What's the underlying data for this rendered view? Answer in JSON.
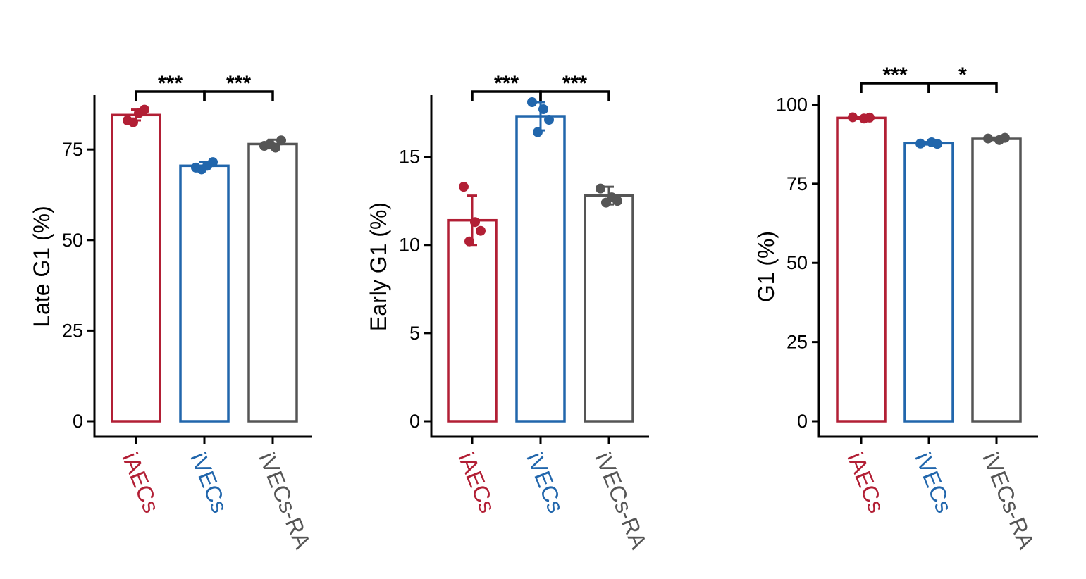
{
  "colors": {
    "iAECs": "#b21f35",
    "iVECs": "#2166ac",
    "iVECs-RA": "#555555",
    "axis": "#000000"
  },
  "chart_data": [
    {
      "type": "bar",
      "ylabel": "Late G1 (%)",
      "categories": [
        "iAECs",
        "iVECs",
        "iVECs-RA"
      ],
      "values": [
        84.5,
        70.5,
        76.5
      ],
      "error": [
        1.5,
        1.0,
        1.2
      ],
      "points": [
        [
          83,
          85,
          86,
          82.5
        ],
        [
          70,
          70.5,
          71.5,
          69.5
        ],
        [
          76,
          75.5,
          77.5,
          76.5
        ]
      ],
      "ylim": [
        0,
        90
      ],
      "yticks": [
        0,
        25,
        50,
        75
      ],
      "grid": false,
      "significance": [
        {
          "from": 0,
          "to": 1,
          "label": "***"
        },
        {
          "from": 1,
          "to": 2,
          "label": "***"
        }
      ]
    },
    {
      "type": "bar",
      "ylabel": "Early G1 (%)",
      "categories": [
        "iAECs",
        "iVECs",
        "iVECs-RA"
      ],
      "values": [
        11.4,
        17.3,
        12.8
      ],
      "error": [
        1.4,
        0.8,
        0.5
      ],
      "points": [
        [
          13.3,
          11.3,
          10.8,
          10.2
        ],
        [
          18.1,
          17.7,
          17.1,
          16.4
        ],
        [
          13.2,
          12.7,
          12.5,
          12.4
        ]
      ],
      "ylim": [
        0,
        18.5
      ],
      "yticks": [
        0,
        5,
        10,
        15
      ],
      "grid": false,
      "significance": [
        {
          "from": 0,
          "to": 1,
          "label": "***"
        },
        {
          "from": 1,
          "to": 2,
          "label": "***"
        }
      ]
    },
    {
      "type": "bar",
      "ylabel": "G1 (%)",
      "categories": [
        "iAECs",
        "iVECs",
        "iVECs-RA"
      ],
      "values": [
        95.8,
        87.8,
        89.2
      ],
      "error": [
        0.4,
        0.4,
        0.4
      ],
      "points": [
        [
          96,
          95.6,
          95.9
        ],
        [
          87.7,
          88.1,
          87.6
        ],
        [
          89.3,
          88.8,
          89.5
        ]
      ],
      "ylim": [
        0,
        103
      ],
      "yticks": [
        0,
        25,
        50,
        75,
        100
      ],
      "grid": false,
      "significance": [
        {
          "from": 0,
          "to": 1,
          "label": "***"
        },
        {
          "from": 1,
          "to": 2,
          "label": "*"
        }
      ]
    }
  ]
}
